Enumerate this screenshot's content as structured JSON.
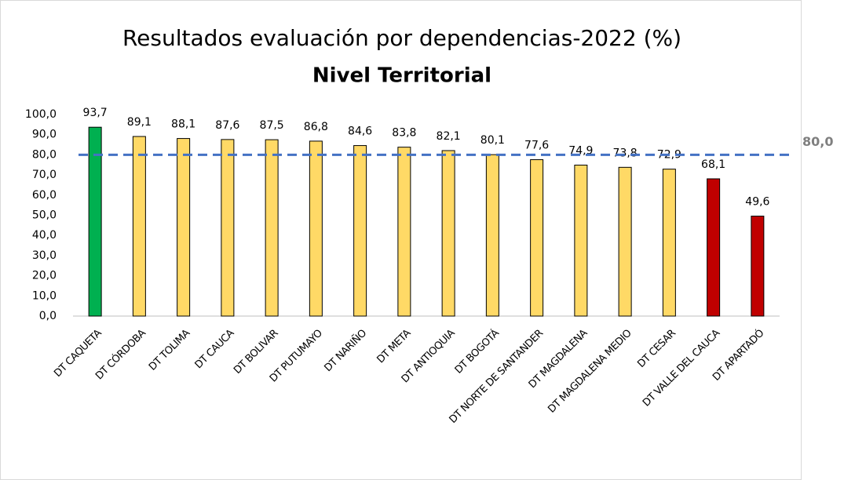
{
  "chart_data": {
    "type": "bar",
    "title": "Resultados evaluación por dependencias-2022 (%)",
    "subtitle": "Nivel Territorial",
    "categories": [
      "DT CAQUETA",
      "DT CÓRDOBA",
      "DT TOLIMA",
      "DT CAUCA",
      "DT BOLIVAR",
      "DT PUTUMAYO",
      "DT NARIÑO",
      "DT META",
      "DT ANTIOQUIA",
      "DT BOGOTÁ",
      "DT NORTE DE SANTANDER",
      "DT MAGDALENA",
      "DT MAGDALENA MEDIO",
      "DT CESAR",
      "DT VALLE DEL CAUCA",
      "DT APARTADÓ"
    ],
    "values": [
      93.7,
      89.1,
      88.1,
      87.6,
      87.5,
      86.8,
      84.6,
      83.8,
      82.1,
      80.1,
      77.6,
      74.9,
      73.8,
      72.9,
      68.1,
      49.6
    ],
    "value_labels": [
      "93,7",
      "89,1",
      "88,1",
      "87,6",
      "87,5",
      "86,8",
      "84,6",
      "83,8",
      "82,1",
      "80,1",
      "77,6",
      "74,9",
      "73,8",
      "72,9",
      "68,1",
      "49,6"
    ],
    "colors": [
      "#00b050",
      "#ffd966",
      "#ffd966",
      "#ffd966",
      "#ffd966",
      "#ffd966",
      "#ffd966",
      "#ffd966",
      "#ffd966",
      "#ffd966",
      "#ffd966",
      "#ffd966",
      "#ffd966",
      "#ffd966",
      "#c00000",
      "#c00000"
    ],
    "reference_line": {
      "value": 80,
      "label": "80,0",
      "color": "#4472c4"
    },
    "ylim": [
      0,
      100
    ],
    "yticks": [
      {
        "value": 0,
        "label": "0,0"
      },
      {
        "value": 10,
        "label": "10,0"
      },
      {
        "value": 20,
        "label": "20,0"
      },
      {
        "value": 30,
        "label": "30,0"
      },
      {
        "value": 40,
        "label": "40,0"
      },
      {
        "value": 50,
        "label": "50,0"
      },
      {
        "value": 60,
        "label": "60,0"
      },
      {
        "value": 70,
        "label": "70,0"
      },
      {
        "value": 80,
        "label": "80,0"
      },
      {
        "value": 90,
        "label": "90,0"
      },
      {
        "value": 100,
        "label": "100,0"
      }
    ],
    "grid": false
  }
}
